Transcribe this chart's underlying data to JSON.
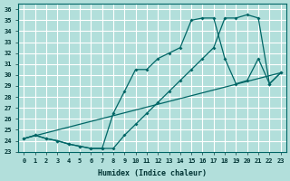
{
  "xlabel": "Humidex (Indice chaleur)",
  "bg_color": "#b2dfdb",
  "grid_color": "#ffffff",
  "line_color": "#006666",
  "xlim": [
    -0.5,
    23.5
  ],
  "ylim": [
    23,
    36.5
  ],
  "xticks": [
    0,
    1,
    2,
    3,
    4,
    5,
    6,
    7,
    8,
    9,
    10,
    11,
    12,
    13,
    14,
    15,
    16,
    17,
    18,
    19,
    20,
    21,
    22,
    23
  ],
  "yticks": [
    23,
    24,
    25,
    26,
    27,
    28,
    29,
    30,
    31,
    32,
    33,
    34,
    35,
    36
  ],
  "line1_x": [
    0,
    1,
    2,
    3,
    4,
    5,
    6,
    7,
    8,
    9,
    10,
    11,
    12,
    13,
    14,
    15,
    16,
    17,
    18,
    19,
    20,
    21,
    22,
    23
  ],
  "line1_y": [
    24.2,
    24.5,
    24.2,
    24.0,
    23.7,
    23.5,
    23.3,
    23.3,
    23.3,
    24.5,
    25.5,
    26.5,
    27.5,
    28.5,
    29.5,
    30.5,
    31.5,
    32.5,
    35.2,
    35.2,
    35.5,
    35.2,
    29.2,
    30.2
  ],
  "line2_x": [
    0,
    1,
    2,
    3,
    4,
    5,
    6,
    7,
    8,
    9,
    10,
    11,
    12,
    13,
    14,
    15,
    16,
    17,
    18,
    19,
    20,
    21,
    22,
    23
  ],
  "line2_y": [
    24.2,
    24.5,
    24.2,
    24.0,
    23.7,
    23.5,
    23.3,
    23.3,
    26.5,
    28.5,
    30.5,
    30.5,
    31.5,
    32.0,
    32.5,
    35.0,
    35.2,
    35.2,
    31.5,
    29.2,
    29.5,
    31.5,
    29.2,
    30.2
  ],
  "line3_x": [
    0,
    23
  ],
  "line3_y": [
    24.2,
    30.2
  ]
}
